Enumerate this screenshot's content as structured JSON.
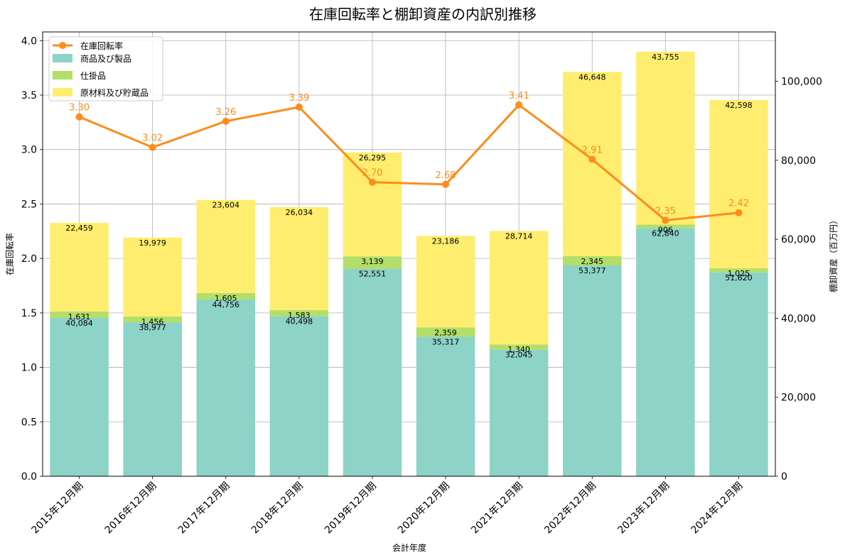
{
  "chart_data": {
    "type": "bar+line",
    "title": "在庫回転率と棚卸資産の内訳別推移",
    "xlabel": "会計年度",
    "ylabel_left": "在庫回転率",
    "ylabel_right": "棚卸資産（百万円）",
    "categories": [
      "2015年12月期",
      "2016年12月期",
      "2017年12月期",
      "2018年12月期",
      "2019年12月期",
      "2020年12月期",
      "2021年12月期",
      "2022年12月期",
      "2023年12月期",
      "2024年12月期"
    ],
    "stacked_series": [
      {
        "name": "商品及び製品",
        "color": "#8dd3c7",
        "values": [
          40084,
          38977,
          44756,
          40498,
          52551,
          35317,
          32045,
          53377,
          62840,
          51620
        ],
        "labels": [
          "40,084",
          "38,977",
          "44,756",
          "40,498",
          "52,551",
          "35,317",
          "32,045",
          "53,377",
          "62,840",
          "51,620"
        ]
      },
      {
        "name": "仕掛品",
        "color": "#b3de69",
        "values": [
          1631,
          1456,
          1605,
          1583,
          3139,
          2359,
          1340,
          2345,
          906,
          1025
        ],
        "labels": [
          "1,631",
          "1,456",
          "1,605",
          "1,583",
          "3,139",
          "2,359",
          "1,340",
          "2,345",
          "906",
          "1,025"
        ]
      },
      {
        "name": "原材料及び貯蔵品",
        "color": "#ffed6f",
        "values": [
          22459,
          19979,
          23604,
          26034,
          26295,
          23186,
          28714,
          46648,
          43755,
          42598
        ],
        "labels": [
          "22,459",
          "19,979",
          "23,604",
          "26,034",
          "26,295",
          "23,186",
          "28,714",
          "46,648",
          "43,755",
          "42,598"
        ]
      }
    ],
    "line_series": {
      "name": "在庫回転率",
      "color": "#ff8c1a",
      "values": [
        3.3,
        3.02,
        3.26,
        3.39,
        2.7,
        2.68,
        3.41,
        2.91,
        2.35,
        2.42
      ],
      "labels": [
        "3.30",
        "3.02",
        "3.26",
        "3.39",
        "2.70",
        "2.68",
        "3.41",
        "2.91",
        "2.35",
        "2.42"
      ]
    },
    "ylim_left": [
      0,
      4.08
    ],
    "yticks_left": [
      "0.0",
      "0.5",
      "1.0",
      "1.5",
      "2.0",
      "2.5",
      "3.0",
      "3.5",
      "4.0"
    ],
    "ylim_right": [
      0,
      112500
    ],
    "yticks_right": [
      "0",
      "20,000",
      "40,000",
      "60,000",
      "80,000",
      "100,000"
    ],
    "grid": true,
    "legend_position": "top-left"
  }
}
